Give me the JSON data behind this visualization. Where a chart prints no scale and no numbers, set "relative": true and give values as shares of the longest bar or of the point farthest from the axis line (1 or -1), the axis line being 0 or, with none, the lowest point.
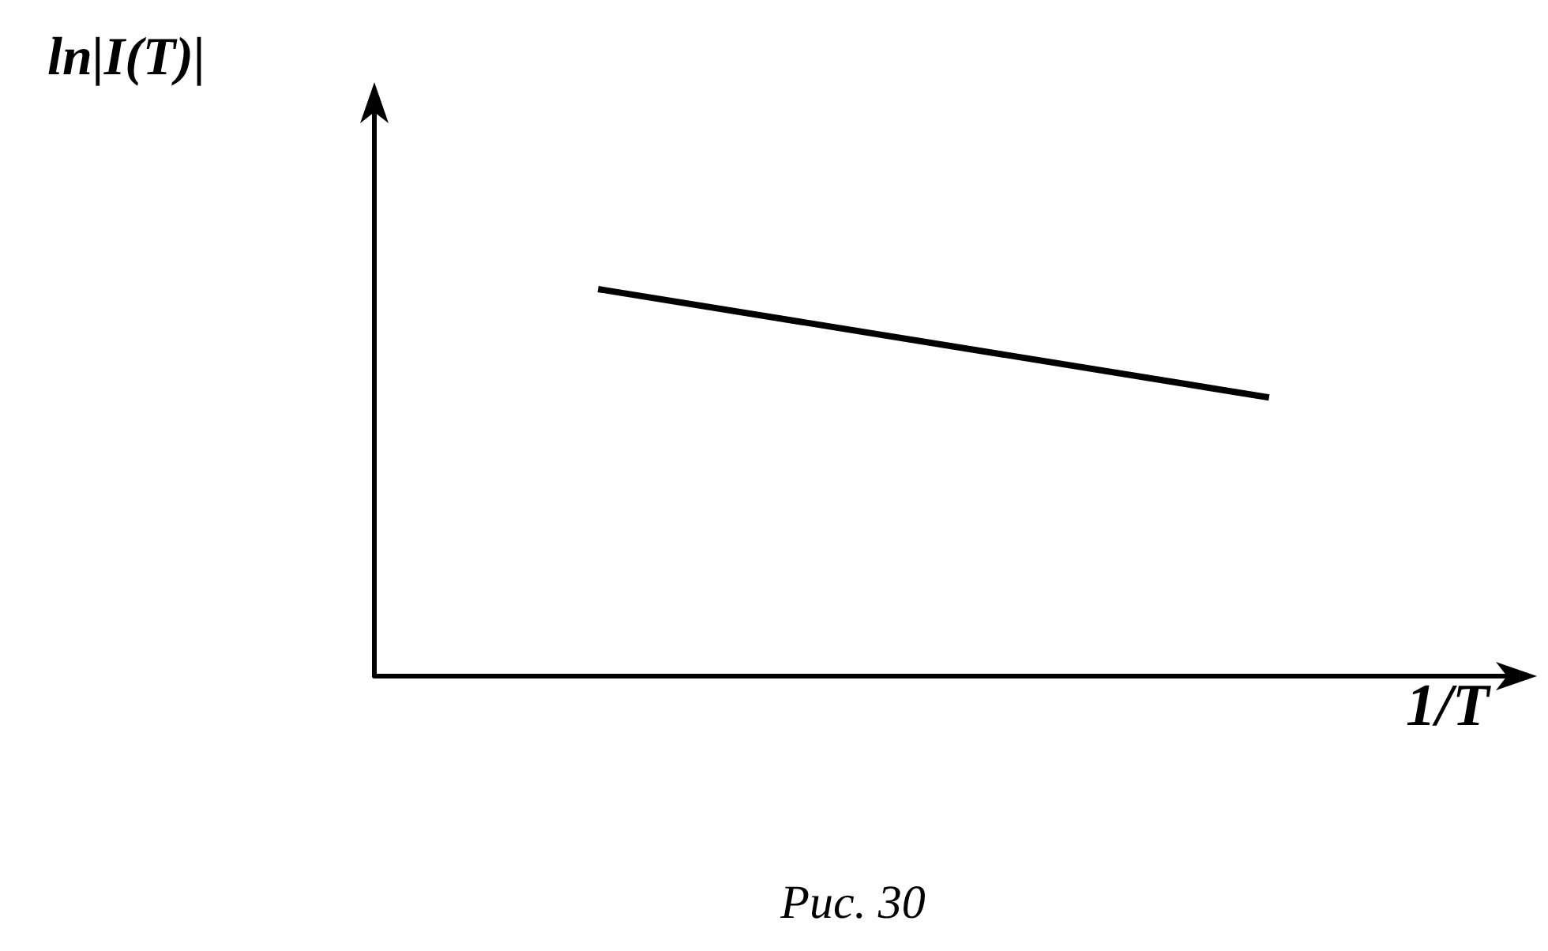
{
  "chart_data": {
    "type": "line",
    "relative": true,
    "ylabel": "ln|I(T)|",
    "xlabel": "1/T",
    "annotations": [
      "Рис. 30"
    ],
    "categories": [
      null,
      null,
      null,
      null,
      null,
      null,
      null,
      null,
      null,
      null,
      null
    ],
    "series": [
      {
        "color": "#000000",
        "values": [
          null,
          null,
          1,
          null,
          null,
          null,
          null,
          null,
          0.72,
          null,
          null
        ]
      }
    ],
    "marker": "none",
    "grid": false,
    "legend": false
  }
}
